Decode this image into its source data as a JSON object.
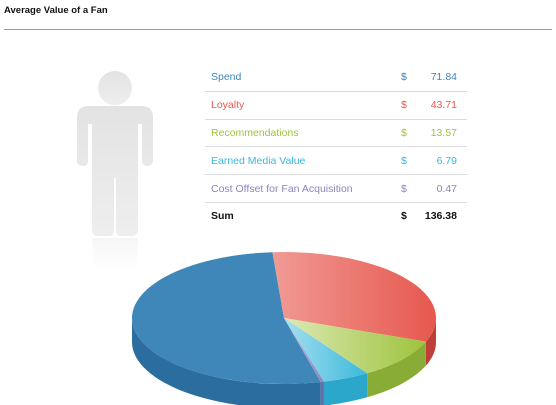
{
  "title": "Average Value of a Fan",
  "chart_data": {
    "type": "pie",
    "currency": "$",
    "slices": [
      {
        "label": "Spend",
        "value": 71.84,
        "display": "71.84",
        "color": "#3f86b9",
        "light": "#7fb3d9",
        "dark": "#2c6d9f"
      },
      {
        "label": "Loyalty",
        "value": 43.71,
        "display": "43.71",
        "color": "#e6584f",
        "light": "#f19a94",
        "dark": "#bf3e37"
      },
      {
        "label": "Recommendations",
        "value": 13.57,
        "display": "13.57",
        "color": "#9dc33c",
        "light": "#dde9b5",
        "dark": "#89ac36"
      },
      {
        "label": "Earned Media Value",
        "value": 6.79,
        "display": "6.79",
        "color": "#3bb9dc",
        "light": "#a6dfee",
        "dark": "#2ba7cc"
      },
      {
        "label": "Cost Offset for Fan Acquisition",
        "value": 0.47,
        "display": "0.47",
        "color": "#8a86bd",
        "light": "#c2bfdd",
        "dark": "#6e6aa6"
      }
    ],
    "total": {
      "label": "Sum",
      "value": 136.38,
      "display": "136.38"
    }
  }
}
